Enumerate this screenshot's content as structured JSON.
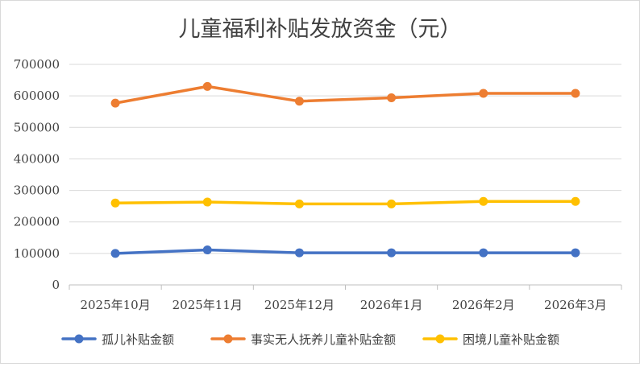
{
  "chart_data": {
    "type": "line",
    "title": "儿童福利补贴发放资金（元）",
    "xlabel": "",
    "ylabel": "",
    "categories": [
      "2025年10月",
      "2025年11月",
      "2025年12月",
      "2026年1月",
      "2026年2月",
      "2026年3月"
    ],
    "ylim": [
      0,
      700000
    ],
    "yticks": [
      0,
      100000,
      200000,
      300000,
      400000,
      500000,
      600000,
      700000
    ],
    "ytick_labels": [
      "0",
      "100000",
      "200000",
      "300000",
      "400000",
      "500000",
      "600000",
      "700000"
    ],
    "grid": true,
    "legend_position": "bottom",
    "series": [
      {
        "name": "孤儿补贴金额",
        "color": "#4472c4",
        "values": [
          100000,
          111000,
          102000,
          102000,
          102000,
          102000
        ]
      },
      {
        "name": "事实无人抚养儿童补贴金额",
        "color": "#ed7d31",
        "values": [
          577000,
          630000,
          583000,
          594000,
          608000,
          608000
        ]
      },
      {
        "name": "困境儿童补贴金额",
        "color": "#ffc000",
        "values": [
          260000,
          263000,
          257000,
          257000,
          265000,
          265000
        ]
      }
    ]
  }
}
